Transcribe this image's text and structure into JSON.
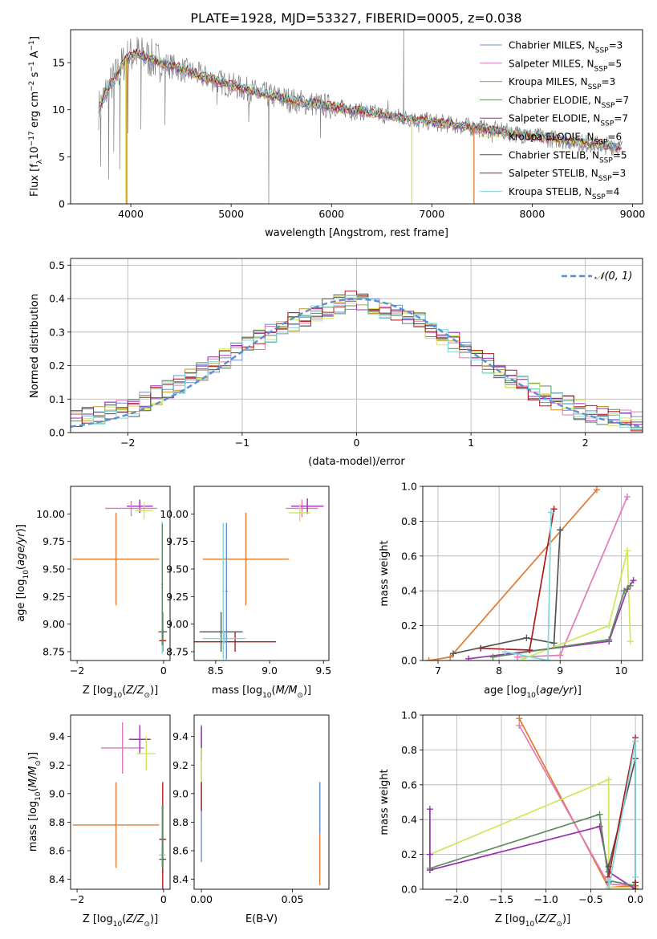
{
  "figure": {
    "title": "PLATE=1928, MJD=53327, FIBERID=0005, z=0.038"
  },
  "colors": {
    "Chabrier MILES": "#6a8fd0",
    "Salpeter MILES": "#e07ab8",
    "Kroupa MILES": "#c8962a",
    "Chabrier ELODIE": "#5e8a5e",
    "Salpeter ELODIE": "#9a2fb0",
    "Kroupa ELODIE": "#cde85a",
    "Chabrier STELIB": "#555555",
    "Salpeter STELIB": "#b01a1a",
    "Kroupa STELIB": "#7fd8dc",
    "data": "#808080",
    "orange": "#e07a30",
    "normal": "#5b8fd6"
  },
  "chart_data": [
    {
      "type": "line",
      "id": "spectrum",
      "title": "PLATE=1928, MJD=53327, FIBERID=0005, z=0.038",
      "xlabel": "wavelength [Angstrom, rest frame]",
      "ylabel": "Flux [f",
      "xlim": [
        3400,
        9100
      ],
      "ylim": [
        0,
        18.5
      ],
      "xticks": [
        4000,
        5000,
        6000,
        7000,
        8000,
        9000
      ],
      "yticks": [
        0,
        5,
        10,
        15
      ],
      "grid": false,
      "legend_placement": "top-right",
      "legend": [
        {
          "label": "Chabrier MILES, N",
          "sub": "SSP",
          "suffix": "=3",
          "color": "#6a8fd0"
        },
        {
          "label": "Salpeter MILES, N",
          "sub": "SSP",
          "suffix": "=5",
          "color": "#e07ab8"
        },
        {
          "label": "Kroupa MILES, N",
          "sub": "SSP",
          "suffix": "=3",
          "color": "#c8962a"
        },
        {
          "label": "Chabrier ELODIE, N",
          "sub": "SSP",
          "suffix": "=7",
          "color": "#5e8a5e"
        },
        {
          "label": "Salpeter ELODIE, N",
          "sub": "SSP",
          "suffix": "=7",
          "color": "#9a2fb0"
        },
        {
          "label": "Kroupa ELODIE, N",
          "sub": "SSP",
          "suffix": "=6",
          "color": "#cde85a"
        },
        {
          "label": "Chabrier STELIB, N",
          "sub": "SSP",
          "suffix": "=5",
          "color": "#555555"
        },
        {
          "label": "Salpeter STELIB, N",
          "sub": "SSP",
          "suffix": "=3",
          "color": "#b01a1a"
        },
        {
          "label": "Kroupa STELIB, N",
          "sub": "SSP",
          "suffix": "=4",
          "color": "#7fd8dc"
        }
      ],
      "model_continuum": {
        "x": [
          3680,
          3750,
          3850,
          3950,
          4050,
          4150,
          4300,
          4500,
          4700,
          5000,
          5300,
          5600,
          6000,
          6500,
          7000,
          7500,
          8000,
          8500,
          8900
        ],
        "y": [
          10.0,
          11.8,
          13.5,
          15.4,
          16.0,
          15.6,
          15.0,
          14.3,
          13.6,
          12.6,
          11.7,
          11.0,
          10.3,
          9.5,
          8.7,
          8.0,
          7.2,
          6.5,
          6.0
        ]
      },
      "data_spikes": [
        {
          "x": 3700,
          "y": 4.0
        },
        {
          "x": 3780,
          "y": 2.6
        },
        {
          "x": 3830,
          "y": 5.5
        },
        {
          "x": 3890,
          "y": 3.7
        },
        {
          "x": 3970,
          "y": 7.5
        },
        {
          "x": 4100,
          "y": 7.9
        },
        {
          "x": 4340,
          "y": 8.4
        },
        {
          "x": 4860,
          "y": 10.5
        },
        {
          "x": 5175,
          "y": 8.7
        },
        {
          "x": 5375,
          "y": 0.0
        },
        {
          "x": 5890,
          "y": 7.0
        },
        {
          "x": 6200,
          "y": 8.8
        },
        {
          "x": 6563,
          "y": 11.0
        },
        {
          "x": 6720,
          "y": 18.5
        },
        {
          "x": 6870,
          "y": 7.6
        },
        {
          "x": 7600,
          "y": 6.5
        },
        {
          "x": 8540,
          "y": 5.5
        }
      ],
      "model_dropouts": [
        {
          "x": 3950,
          "y": 0.0,
          "color": "#cde85a"
        },
        {
          "x": 3960,
          "y": 0.0,
          "color": "#e07a30"
        },
        {
          "x": 6800,
          "y": 0.0,
          "color": "#cde85a"
        },
        {
          "x": 7420,
          "y": 0.0,
          "color": "#e07a30"
        }
      ]
    },
    {
      "type": "line",
      "id": "residuals",
      "xlabel": "(data-model)/error",
      "ylabel": "Normed distribution",
      "xlim": [
        -2.5,
        2.5
      ],
      "ylim": [
        0,
        0.52
      ],
      "xticks": [
        -2,
        -1,
        0,
        1,
        2
      ],
      "yticks": [
        0.0,
        0.1,
        0.2,
        0.3,
        0.4,
        0.5
      ],
      "grid": true,
      "legend_placement": "top-right",
      "legend": [
        {
          "label": "𝒩(0, 1)",
          "color": "#5b8fd6",
          "style": "dashed"
        }
      ],
      "bin_width": 0.1,
      "histogram_envelope": {
        "x": [
          -2.5,
          -2.0,
          -1.5,
          -1.0,
          -0.5,
          0.0,
          0.5,
          1.0,
          1.5,
          2.0,
          2.5
        ],
        "y": [
          0.04,
          0.07,
          0.15,
          0.25,
          0.34,
          0.4,
          0.34,
          0.24,
          0.13,
          0.06,
          0.03
        ]
      },
      "normal_curve": {
        "mean": 0,
        "sigma": 1
      }
    },
    {
      "type": "scatter",
      "id": "age-vs-Z",
      "xlabel": "Z [log",
      "ylabel": "age  [log",
      "xlim": [
        -2.15,
        0.15
      ],
      "ylim": [
        8.67,
        10.25
      ],
      "xticks": [
        -2,
        0
      ],
      "yticks": [
        8.75,
        9.0,
        9.25,
        9.5,
        9.75,
        10.0
      ],
      "grid": false,
      "points": [
        {
          "x": -1.1,
          "y": 9.59,
          "xerr": 1.0,
          "yerr": 0.42,
          "color": "#e07a30"
        },
        {
          "x": -0.55,
          "y": 10.07,
          "xerr": 0.3,
          "yerr": 0.06,
          "color": "#9a2fb0"
        },
        {
          "x": -0.45,
          "y": 10.03,
          "xerr": 0.2,
          "yerr": 0.08,
          "color": "#cde85a"
        },
        {
          "x": -0.75,
          "y": 10.05,
          "xerr": 0.6,
          "yerr": 0.07,
          "color": "#e07ab8"
        },
        {
          "x": -0.02,
          "y": 8.93,
          "xerr": 0.1,
          "yerr": 0.18,
          "color": "#555555"
        },
        {
          "x": -0.02,
          "y": 8.85,
          "xerr": 0.08,
          "yerr": 0.09,
          "color": "#b01a1a"
        },
        {
          "x": -0.03,
          "y": 9.33,
          "xerr": 0.02,
          "yerr": 0.6,
          "color": "#7fd8dc"
        },
        {
          "x": -0.03,
          "y": 9.36,
          "xerr": 0.02,
          "yerr": 0.55,
          "color": "#5e8a5e"
        }
      ]
    },
    {
      "type": "scatter",
      "id": "age-vs-mass",
      "xlabel": "mass [log",
      "xlim": [
        8.3,
        9.55
      ],
      "ylim": [
        8.67,
        10.25
      ],
      "xticks": [
        8.5,
        9.0,
        9.5
      ],
      "yticks": [
        8.75,
        9.0,
        9.25,
        9.5,
        9.75,
        10.0
      ],
      "grid": false,
      "points": [
        {
          "x": 8.78,
          "y": 9.59,
          "xerr": 0.4,
          "yerr": 0.42,
          "color": "#e07a30"
        },
        {
          "x": 8.68,
          "y": 8.84,
          "xerr": 0.38,
          "yerr": 0.09,
          "color": "#b01a1a"
        },
        {
          "x": 8.55,
          "y": 8.93,
          "xerr": 0.2,
          "yerr": 0.18,
          "color": "#555555"
        },
        {
          "x": 8.58,
          "y": 8.87,
          "xerr": 0.2,
          "yerr": 0.05,
          "color": "#7fd8dc"
        },
        {
          "x": 8.57,
          "y": 9.3,
          "xerr": 0.01,
          "yerr": 0.62,
          "color": "#7fd8dc"
        },
        {
          "x": 8.6,
          "y": 9.3,
          "xerr": 0.01,
          "yerr": 0.62,
          "color": "#6a8fd0"
        },
        {
          "x": 9.3,
          "y": 10.05,
          "xerr": 0.15,
          "yerr": 0.08,
          "color": "#e07ab8"
        },
        {
          "x": 9.35,
          "y": 10.07,
          "xerr": 0.15,
          "yerr": 0.07,
          "color": "#9a2fb0"
        },
        {
          "x": 9.28,
          "y": 10.01,
          "xerr": 0.1,
          "yerr": 0.08,
          "color": "#cde85a"
        }
      ]
    },
    {
      "type": "line",
      "id": "massweight-vs-age",
      "xlabel": "age  [log",
      "ylabel": "mass weight",
      "xlim": [
        6.75,
        10.35
      ],
      "ylim": [
        0,
        1.0
      ],
      "xticks": [
        7,
        8,
        9,
        10
      ],
      "yticks": [
        0.0,
        0.2,
        0.4,
        0.6,
        0.8,
        1.0
      ],
      "grid": true,
      "series": [
        {
          "color": "#e07a30",
          "x": [
            6.85,
            7.2,
            9.6
          ],
          "y": [
            0.0,
            0.02,
            0.98
          ]
        },
        {
          "color": "#e07ab8",
          "x": [
            8.3,
            9.0,
            10.1
          ],
          "y": [
            0.02,
            0.03,
            0.94
          ]
        },
        {
          "color": "#cde85a",
          "x": [
            8.4,
            9.8,
            10.1,
            10.15
          ],
          "y": [
            0.01,
            0.2,
            0.63,
            0.11
          ]
        },
        {
          "color": "#9a2fb0",
          "x": [
            7.5,
            9.8,
            10.1,
            10.2
          ],
          "y": [
            0.01,
            0.11,
            0.41,
            0.46
          ]
        },
        {
          "color": "#5e8a5e",
          "x": [
            7.9,
            9.8,
            10.05,
            10.15
          ],
          "y": [
            0.02,
            0.12,
            0.4,
            0.43
          ]
        },
        {
          "color": "#555555",
          "x": [
            7.25,
            8.45,
            8.9,
            9.0
          ],
          "y": [
            0.04,
            0.13,
            0.1,
            0.75
          ]
        },
        {
          "color": "#b01a1a",
          "x": [
            7.7,
            8.5,
            8.9
          ],
          "y": [
            0.07,
            0.06,
            0.87
          ]
        },
        {
          "color": "#7fd8dc",
          "x": [
            8.1,
            8.8,
            8.85
          ],
          "y": [
            0.05,
            0.0,
            0.85
          ]
        }
      ]
    },
    {
      "type": "scatter",
      "id": "mass-vs-Z",
      "xlabel": "Z [log",
      "ylabel": "mass [log",
      "xlim": [
        -2.15,
        0.15
      ],
      "ylim": [
        8.33,
        9.55
      ],
      "xticks": [
        -2,
        0
      ],
      "yticks": [
        8.4,
        8.6,
        8.8,
        9.0,
        9.2,
        9.4
      ],
      "grid": false,
      "points": [
        {
          "x": -1.1,
          "y": 8.78,
          "xerr": 1.0,
          "yerr": 0.3,
          "color": "#e07a30"
        },
        {
          "x": -0.95,
          "y": 9.32,
          "xerr": 0.5,
          "yerr": 0.18,
          "color": "#e07ab8"
        },
        {
          "x": -0.55,
          "y": 9.38,
          "xerr": 0.25,
          "yerr": 0.1,
          "color": "#9a2fb0"
        },
        {
          "x": -0.4,
          "y": 9.28,
          "xerr": 0.22,
          "yerr": 0.12,
          "color": "#cde85a"
        },
        {
          "x": -0.02,
          "y": 8.54,
          "xerr": 0.08,
          "yerr": 0.1,
          "color": "#555555"
        },
        {
          "x": -0.02,
          "y": 8.68,
          "xerr": 0.08,
          "yerr": 0.4,
          "color": "#b01a1a"
        },
        {
          "x": -0.03,
          "y": 8.57,
          "xerr": 0.08,
          "yerr": 0.05,
          "color": "#7fd8dc"
        },
        {
          "x": -0.03,
          "y": 8.7,
          "xerr": 0.01,
          "yerr": 0.22,
          "color": "#5e8a5e"
        }
      ]
    },
    {
      "type": "scatter",
      "id": "mass-vs-ebv",
      "xlabel": "E(B-V)",
      "xlim": [
        -0.004,
        0.07
      ],
      "ylim": [
        8.33,
        9.55
      ],
      "xticks": [
        0.0,
        0.05
      ],
      "yticks": [
        8.4,
        8.6,
        8.8,
        9.0,
        9.2,
        9.4
      ],
      "grid": false,
      "points": [
        {
          "x": 0.0,
          "y": 9.0,
          "xerr": 0.0,
          "yerr": 0.48,
          "color": "#6a8fd0"
        },
        {
          "x": 0.0,
          "y": 9.35,
          "xerr": 0.0,
          "yerr": 0.12,
          "color": "#9a2fb0"
        },
        {
          "x": 0.0,
          "y": 9.2,
          "xerr": 0.0,
          "yerr": 0.12,
          "color": "#cde85a"
        },
        {
          "x": 0.0,
          "y": 8.98,
          "xerr": 0.0,
          "yerr": 0.1,
          "color": "#b01a1a"
        },
        {
          "x": 0.065,
          "y": 8.72,
          "xerr": 0.0,
          "yerr": 0.36,
          "color": "#e07a30"
        },
        {
          "x": 0.065,
          "y": 8.9,
          "xerr": 0.0,
          "yerr": 0.18,
          "color": "#6a8fd0"
        }
      ]
    },
    {
      "type": "line",
      "id": "massweight-vs-Z",
      "xlabel": "Z [log",
      "ylabel": "mass weight",
      "xlim": [
        -2.38,
        0.08
      ],
      "ylim": [
        0,
        1.0
      ],
      "xticks": [
        -2.0,
        -1.5,
        -1.0,
        -0.5,
        0.0
      ],
      "yticks": [
        0.0,
        0.2,
        0.4,
        0.6,
        0.8,
        1.0
      ],
      "grid": true,
      "series": [
        {
          "color": "#e07a30",
          "x": [
            -1.3,
            -0.3,
            -0.02
          ],
          "y": [
            0.98,
            0.01,
            0.02
          ]
        },
        {
          "color": "#e07ab8",
          "x": [
            -1.3,
            -0.3,
            0.0
          ],
          "y": [
            0.94,
            0.03,
            0.02
          ]
        },
        {
          "color": "#cde85a",
          "x": [
            -2.3,
            -2.3,
            -0.3,
            -0.3,
            0.0
          ],
          "y": [
            0.11,
            0.2,
            0.63,
            0.01,
            0.01
          ]
        },
        {
          "color": "#9a2fb0",
          "x": [
            -2.3,
            -2.3,
            -2.3,
            -0.4,
            -0.3,
            0.0
          ],
          "y": [
            0.46,
            0.2,
            0.11,
            0.36,
            0.1,
            0.0
          ]
        },
        {
          "color": "#5e8a5e",
          "x": [
            -2.3,
            -0.4,
            -0.3,
            0.0
          ],
          "y": [
            0.12,
            0.43,
            0.05,
            0.02
          ]
        },
        {
          "color": "#555555",
          "x": [
            -0.3,
            -0.3,
            0.0,
            0.0
          ],
          "y": [
            0.04,
            0.13,
            0.75,
            0.04
          ]
        },
        {
          "color": "#b01a1a",
          "x": [
            -0.3,
            0.0,
            0.0
          ],
          "y": [
            0.07,
            0.87,
            0.0
          ]
        },
        {
          "color": "#7fd8dc",
          "x": [
            -0.3,
            -0.3,
            0.0,
            0.0
          ],
          "y": [
            0.05,
            0.0,
            0.85,
            0.07
          ]
        }
      ]
    }
  ]
}
